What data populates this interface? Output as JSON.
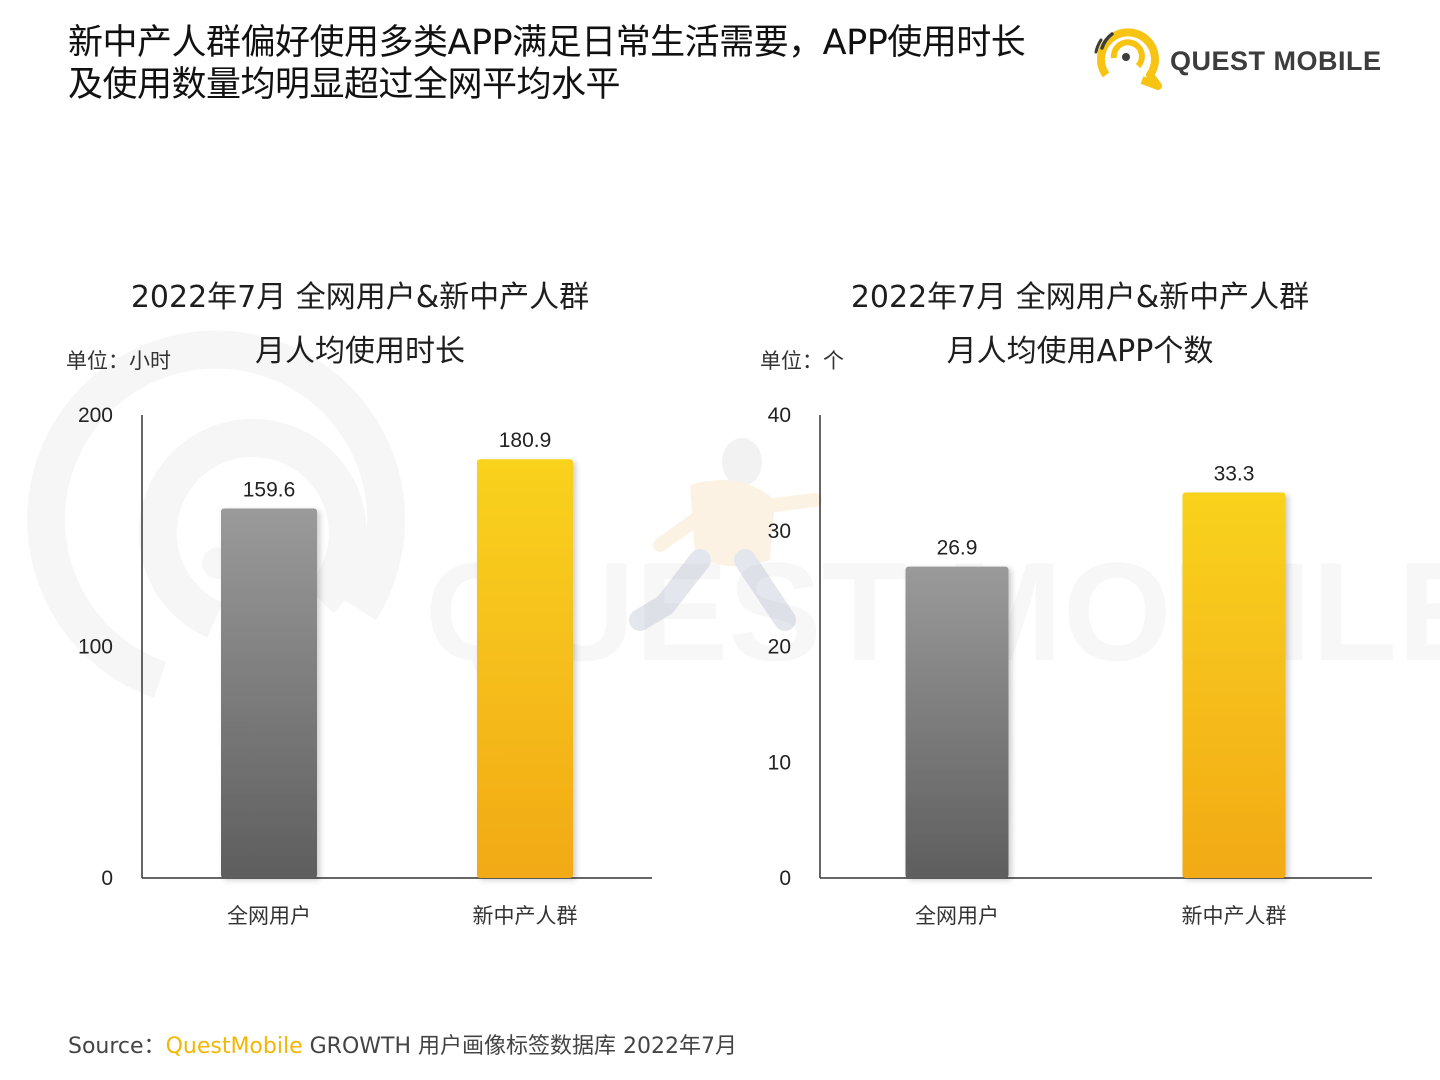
{
  "headline": {
    "line1": "新中产人群偏好使用多类APP满足日常生活需要，APP使用时长",
    "line2": "及使用数量均明显超过全网平均水平"
  },
  "brand": {
    "name": "QUEST MOBILE",
    "watermark_text": "QUEST MOBILE"
  },
  "colors": {
    "gray_bar_top": "#9a9a9a",
    "gray_bar_bottom": "#5e5e5e",
    "yellow_bar_top": "#f9d21c",
    "yellow_bar_bottom": "#f2aa18",
    "accent": "#f2b705",
    "axis": "#333333"
  },
  "charts": [
    {
      "title_line1": "2022年7月 全网用户&新中产人群",
      "title_line2": "月人均使用时长",
      "unit": "单位：小时"
    },
    {
      "title_line1": "2022年7月 全网用户&新中产人群",
      "title_line2": "月人均使用APP个数",
      "unit": "单位：个"
    }
  ],
  "chart_data": [
    {
      "type": "bar",
      "title": "2022年7月 全网用户&新中产人群 月人均使用时长",
      "categories": [
        "全网用户",
        "新中产人群"
      ],
      "values": [
        159.6,
        180.9
      ],
      "value_labels": [
        "159.6",
        "180.9"
      ],
      "ylabel": "单位：小时",
      "ylim": [
        0,
        200
      ],
      "yticks": [
        0,
        100,
        200
      ],
      "ytick_labels": [
        "0",
        "100",
        "200"
      ],
      "grid": false,
      "legend": "none"
    },
    {
      "type": "bar",
      "title": "2022年7月 全网用户&新中产人群 月人均使用APP个数",
      "categories": [
        "全网用户",
        "新中产人群"
      ],
      "values": [
        26.9,
        33.3
      ],
      "value_labels": [
        "26.9",
        "33.3"
      ],
      "ylabel": "单位：个",
      "ylim": [
        0,
        40
      ],
      "yticks": [
        0,
        10,
        20,
        30,
        40
      ],
      "ytick_labels": [
        "0",
        "10",
        "20",
        "30",
        "40"
      ],
      "grid": false,
      "legend": "none"
    }
  ],
  "source": {
    "prefix": "Source：",
    "brand": "QuestMobile",
    "suffix": " GROWTH 用户画像标签数据库 2022年7月"
  }
}
